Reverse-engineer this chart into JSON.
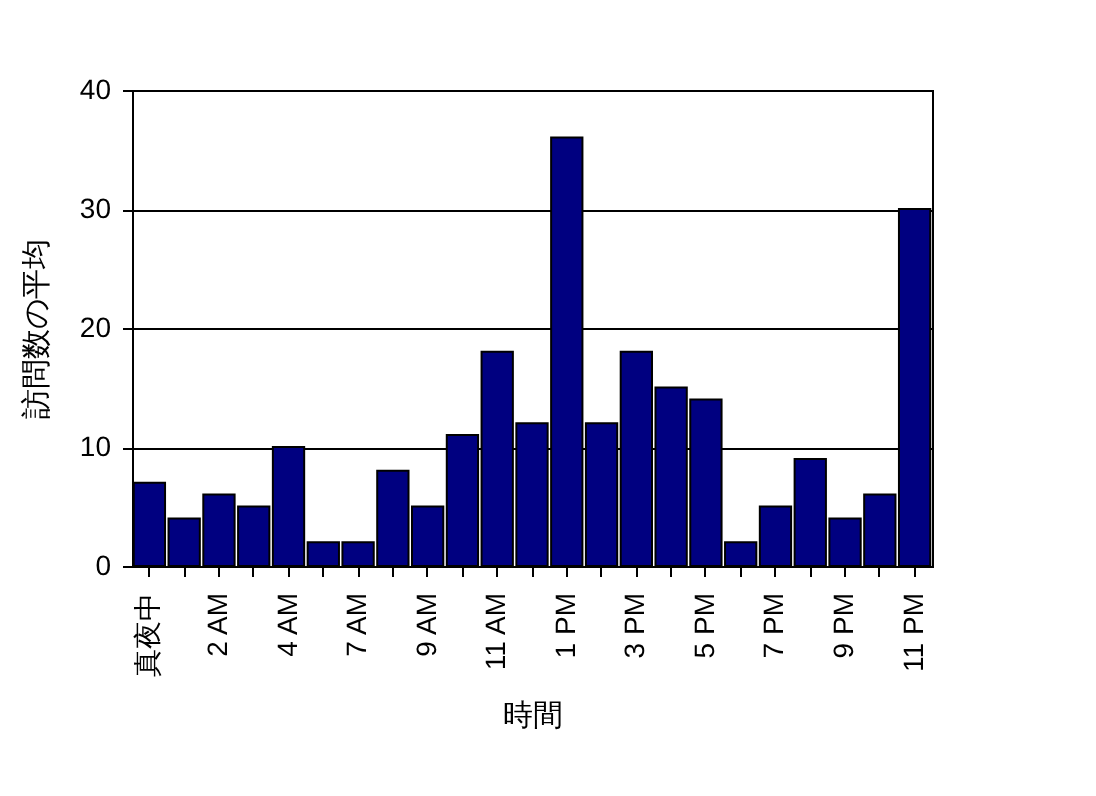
{
  "chart_data": {
    "type": "bar",
    "xlabel": "時間",
    "ylabel": "訪問数の平均",
    "categories": [
      "真夜中",
      null,
      "2 AM",
      null,
      "4 AM",
      null,
      "7 AM",
      null,
      "9 AM",
      null,
      "11 AM",
      null,
      "1 PM",
      null,
      "3 PM",
      null,
      "5 PM",
      null,
      "7 PM",
      null,
      "9 PM",
      null,
      "11 PM"
    ],
    "values": [
      7,
      4,
      6,
      5,
      10,
      2,
      2,
      8,
      5,
      11,
      18,
      12,
      36,
      12,
      18,
      15,
      14,
      2,
      5,
      9,
      4,
      6,
      30
    ],
    "color": "#000080",
    "ylim": [
      0,
      40
    ],
    "yticks": [
      0,
      10,
      20,
      30,
      40
    ],
    "grid": "y"
  }
}
